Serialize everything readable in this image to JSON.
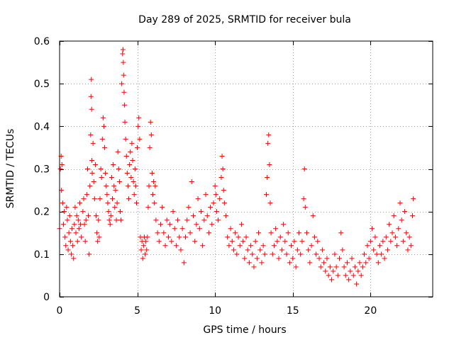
{
  "chart_data": {
    "type": "scatter",
    "title": "Day 289 of 2025, SRMTID for receiver bula",
    "xlabel": "GPS time / hours",
    "ylabel": "SRMTID / TECUs",
    "xlim": [
      0,
      24
    ],
    "ylim": [
      0,
      0.6
    ],
    "xticks": [
      0,
      5,
      10,
      15,
      20
    ],
    "xtick_labels": [
      "0",
      "5",
      "10",
      "15",
      "20"
    ],
    "yticks": [
      0,
      0.1,
      0.2,
      0.3,
      0.4,
      0.5,
      0.6
    ],
    "ytick_labels": [
      "0",
      "0.1",
      "0.2",
      "0.3",
      "0.4",
      "0.5",
      "0.6"
    ],
    "grid": true,
    "marker": "+",
    "point_color": "#ff0000",
    "series": [
      {
        "name": "SRMTID",
        "points": [
          [
            0.0,
            0.16
          ],
          [
            0.05,
            0.3
          ],
          [
            0.1,
            0.33
          ],
          [
            0.12,
            0.25
          ],
          [
            0.15,
            0.31
          ],
          [
            0.2,
            0.22
          ],
          [
            0.25,
            0.17
          ],
          [
            0.3,
            0.2
          ],
          [
            0.35,
            0.14
          ],
          [
            0.4,
            0.12
          ],
          [
            0.45,
            0.21
          ],
          [
            0.5,
            0.18
          ],
          [
            0.55,
            0.11
          ],
          [
            0.6,
            0.15
          ],
          [
            0.65,
            0.19
          ],
          [
            0.7,
            0.13
          ],
          [
            0.75,
            0.1
          ],
          [
            0.8,
            0.16
          ],
          [
            0.85,
            0.12
          ],
          [
            0.9,
            0.09
          ],
          [
            0.95,
            0.17
          ],
          [
            1.0,
            0.21
          ],
          [
            1.05,
            0.15
          ],
          [
            1.1,
            0.19
          ],
          [
            1.15,
            0.13
          ],
          [
            1.2,
            0.18
          ],
          [
            1.25,
            0.16
          ],
          [
            1.3,
            0.22
          ],
          [
            1.35,
            0.17
          ],
          [
            1.4,
            0.14
          ],
          [
            1.5,
            0.2
          ],
          [
            1.55,
            0.23
          ],
          [
            1.6,
            0.17
          ],
          [
            1.65,
            0.13
          ],
          [
            1.7,
            0.18
          ],
          [
            1.75,
            0.24
          ],
          [
            1.8,
            0.3
          ],
          [
            1.85,
            0.19
          ],
          [
            1.9,
            0.1
          ],
          [
            1.95,
            0.26
          ],
          [
            2.0,
            0.38
          ],
          [
            2.02,
            0.47
          ],
          [
            2.04,
            0.51
          ],
          [
            2.06,
            0.44
          ],
          [
            2.08,
            0.32
          ],
          [
            2.1,
            0.29
          ],
          [
            2.15,
            0.36
          ],
          [
            2.2,
            0.27
          ],
          [
            2.25,
            0.23
          ],
          [
            2.3,
            0.31
          ],
          [
            2.35,
            0.19
          ],
          [
            2.4,
            0.15
          ],
          [
            2.45,
            0.13
          ],
          [
            2.5,
            0.18
          ],
          [
            2.55,
            0.14
          ],
          [
            2.6,
            0.23
          ],
          [
            2.65,
            0.3
          ],
          [
            2.7,
            0.28
          ],
          [
            2.75,
            0.37
          ],
          [
            2.8,
            0.42
          ],
          [
            2.85,
            0.4
          ],
          [
            2.9,
            0.35
          ],
          [
            2.95,
            0.29
          ],
          [
            3.0,
            0.26
          ],
          [
            3.05,
            0.24
          ],
          [
            3.1,
            0.22
          ],
          [
            3.15,
            0.2
          ],
          [
            3.2,
            0.18
          ],
          [
            3.25,
            0.17
          ],
          [
            3.3,
            0.19
          ],
          [
            3.35,
            0.28
          ],
          [
            3.4,
            0.23
          ],
          [
            3.45,
            0.31
          ],
          [
            3.5,
            0.26
          ],
          [
            3.55,
            0.21
          ],
          [
            3.6,
            0.25
          ],
          [
            3.65,
            0.18
          ],
          [
            3.7,
            0.22
          ],
          [
            3.75,
            0.34
          ],
          [
            3.8,
            0.3
          ],
          [
            3.85,
            0.27
          ],
          [
            3.9,
            0.2
          ],
          [
            3.95,
            0.18
          ],
          [
            4.0,
            0.5
          ],
          [
            4.05,
            0.57
          ],
          [
            4.08,
            0.58
          ],
          [
            4.1,
            0.55
          ],
          [
            4.12,
            0.52
          ],
          [
            4.15,
            0.48
          ],
          [
            4.18,
            0.45
          ],
          [
            4.2,
            0.41
          ],
          [
            4.25,
            0.37
          ],
          [
            4.3,
            0.33
          ],
          [
            4.35,
            0.29
          ],
          [
            4.4,
            0.26
          ],
          [
            4.45,
            0.23
          ],
          [
            4.5,
            0.31
          ],
          [
            4.55,
            0.34
          ],
          [
            4.6,
            0.28
          ],
          [
            4.65,
            0.36
          ],
          [
            4.7,
            0.32
          ],
          [
            4.75,
            0.27
          ],
          [
            4.8,
            0.24
          ],
          [
            4.85,
            0.3
          ],
          [
            4.9,
            0.26
          ],
          [
            4.95,
            0.22
          ],
          [
            5.0,
            0.35
          ],
          [
            5.05,
            0.4
          ],
          [
            5.1,
            0.42
          ],
          [
            5.15,
            0.37
          ],
          [
            5.2,
            0.14
          ],
          [
            5.25,
            0.11
          ],
          [
            5.3,
            0.13
          ],
          [
            5.35,
            0.09
          ],
          [
            5.4,
            0.12
          ],
          [
            5.45,
            0.14
          ],
          [
            5.5,
            0.1
          ],
          [
            5.55,
            0.13
          ],
          [
            5.6,
            0.11
          ],
          [
            5.65,
            0.14
          ],
          [
            5.7,
            0.21
          ],
          [
            5.75,
            0.26
          ],
          [
            5.8,
            0.35
          ],
          [
            5.85,
            0.41
          ],
          [
            5.9,
            0.38
          ],
          [
            5.95,
            0.29
          ],
          [
            6.0,
            0.24
          ],
          [
            6.05,
            0.27
          ],
          [
            6.1,
            0.22
          ],
          [
            6.15,
            0.26
          ],
          [
            6.2,
            0.18
          ],
          [
            6.3,
            0.15
          ],
          [
            6.4,
            0.13
          ],
          [
            6.5,
            0.17
          ],
          [
            6.6,
            0.21
          ],
          [
            6.7,
            0.15
          ],
          [
            6.8,
            0.12
          ],
          [
            6.9,
            0.18
          ],
          [
            7.0,
            0.14
          ],
          [
            7.1,
            0.17
          ],
          [
            7.2,
            0.13
          ],
          [
            7.3,
            0.2
          ],
          [
            7.4,
            0.16
          ],
          [
            7.5,
            0.12
          ],
          [
            7.6,
            0.18
          ],
          [
            7.7,
            0.14
          ],
          [
            7.8,
            0.11
          ],
          [
            7.9,
            0.16
          ],
          [
            8.0,
            0.08
          ],
          [
            8.1,
            0.14
          ],
          [
            8.2,
            0.18
          ],
          [
            8.3,
            0.21
          ],
          [
            8.4,
            0.15
          ],
          [
            8.5,
            0.27
          ],
          [
            8.6,
            0.19
          ],
          [
            8.7,
            0.13
          ],
          [
            8.8,
            0.17
          ],
          [
            8.9,
            0.23
          ],
          [
            9.0,
            0.16
          ],
          [
            9.1,
            0.2
          ],
          [
            9.2,
            0.12
          ],
          [
            9.3,
            0.18
          ],
          [
            9.4,
            0.24
          ],
          [
            9.5,
            0.19
          ],
          [
            9.6,
            0.15
          ],
          [
            9.7,
            0.21
          ],
          [
            9.8,
            0.17
          ],
          [
            9.9,
            0.22
          ],
          [
            10.0,
            0.26
          ],
          [
            10.05,
            0.24
          ],
          [
            10.1,
            0.2
          ],
          [
            10.2,
            0.18
          ],
          [
            10.3,
            0.23
          ],
          [
            10.4,
            0.28
          ],
          [
            10.45,
            0.33
          ],
          [
            10.5,
            0.3
          ],
          [
            10.55,
            0.25
          ],
          [
            10.6,
            0.22
          ],
          [
            10.7,
            0.19
          ],
          [
            10.8,
            0.14
          ],
          [
            10.9,
            0.12
          ],
          [
            11.0,
            0.16
          ],
          [
            11.1,
            0.13
          ],
          [
            11.2,
            0.11
          ],
          [
            11.3,
            0.15
          ],
          [
            11.4,
            0.1
          ],
          [
            11.5,
            0.14
          ],
          [
            11.6,
            0.12
          ],
          [
            11.7,
            0.17
          ],
          [
            11.8,
            0.13
          ],
          [
            11.9,
            0.09
          ],
          [
            12.0,
            0.14
          ],
          [
            12.1,
            0.11
          ],
          [
            12.2,
            0.08
          ],
          [
            12.3,
            0.12
          ],
          [
            12.4,
            0.1
          ],
          [
            12.5,
            0.07
          ],
          [
            12.6,
            0.13
          ],
          [
            12.7,
            0.09
          ],
          [
            12.8,
            0.15
          ],
          [
            12.9,
            0.11
          ],
          [
            13.0,
            0.08
          ],
          [
            13.1,
            0.12
          ],
          [
            13.2,
            0.1
          ],
          [
            13.3,
            0.24
          ],
          [
            13.35,
            0.28
          ],
          [
            13.4,
            0.36
          ],
          [
            13.45,
            0.38
          ],
          [
            13.5,
            0.31
          ],
          [
            13.55,
            0.22
          ],
          [
            13.6,
            0.15
          ],
          [
            13.7,
            0.1
          ],
          [
            13.8,
            0.12
          ],
          [
            13.9,
            0.16
          ],
          [
            14.0,
            0.13
          ],
          [
            14.1,
            0.09
          ],
          [
            14.2,
            0.14
          ],
          [
            14.3,
            0.11
          ],
          [
            14.4,
            0.17
          ],
          [
            14.5,
            0.13
          ],
          [
            14.6,
            0.1
          ],
          [
            14.7,
            0.15
          ],
          [
            14.8,
            0.08
          ],
          [
            14.9,
            0.12
          ],
          [
            15.0,
            0.09
          ],
          [
            15.1,
            0.13
          ],
          [
            15.2,
            0.07
          ],
          [
            15.3,
            0.11
          ],
          [
            15.4,
            0.15
          ],
          [
            15.5,
            0.1
          ],
          [
            15.6,
            0.13
          ],
          [
            15.7,
            0.23
          ],
          [
            15.75,
            0.3
          ],
          [
            15.8,
            0.21
          ],
          [
            15.9,
            0.15
          ],
          [
            16.0,
            0.11
          ],
          [
            16.1,
            0.08
          ],
          [
            16.2,
            0.12
          ],
          [
            16.3,
            0.19
          ],
          [
            16.4,
            0.14
          ],
          [
            16.5,
            0.1
          ],
          [
            16.6,
            0.13
          ],
          [
            16.7,
            0.09
          ],
          [
            16.8,
            0.07
          ],
          [
            16.9,
            0.11
          ],
          [
            17.0,
            0.08
          ],
          [
            17.1,
            0.06
          ],
          [
            17.2,
            0.09
          ],
          [
            17.3,
            0.05
          ],
          [
            17.4,
            0.07
          ],
          [
            17.5,
            0.04
          ],
          [
            17.6,
            0.06
          ],
          [
            17.7,
            0.1
          ],
          [
            17.8,
            0.07
          ],
          [
            17.9,
            0.05
          ],
          [
            18.0,
            0.09
          ],
          [
            18.1,
            0.15
          ],
          [
            18.2,
            0.11
          ],
          [
            18.3,
            0.07
          ],
          [
            18.4,
            0.05
          ],
          [
            18.5,
            0.08
          ],
          [
            18.6,
            0.04
          ],
          [
            18.7,
            0.06
          ],
          [
            18.8,
            0.09
          ],
          [
            18.9,
            0.05
          ],
          [
            19.0,
            0.07
          ],
          [
            19.1,
            0.03
          ],
          [
            19.2,
            0.06
          ],
          [
            19.3,
            0.08
          ],
          [
            19.4,
            0.05
          ],
          [
            19.5,
            0.07
          ],
          [
            19.6,
            0.1
          ],
          [
            19.7,
            0.08
          ],
          [
            19.8,
            0.12
          ],
          [
            19.9,
            0.09
          ],
          [
            20.0,
            0.13
          ],
          [
            20.1,
            0.16
          ],
          [
            20.2,
            0.11
          ],
          [
            20.3,
            0.14
          ],
          [
            20.4,
            0.1
          ],
          [
            20.5,
            0.08
          ],
          [
            20.6,
            0.12
          ],
          [
            20.7,
            0.1
          ],
          [
            20.8,
            0.13
          ],
          [
            20.9,
            0.09
          ],
          [
            21.0,
            0.14
          ],
          [
            21.1,
            0.11
          ],
          [
            21.2,
            0.17
          ],
          [
            21.3,
            0.13
          ],
          [
            21.4,
            0.15
          ],
          [
            21.5,
            0.19
          ],
          [
            21.6,
            0.14
          ],
          [
            21.7,
            0.12
          ],
          [
            21.8,
            0.16
          ],
          [
            21.9,
            0.22
          ],
          [
            22.0,
            0.18
          ],
          [
            22.1,
            0.13
          ],
          [
            22.2,
            0.2
          ],
          [
            22.3,
            0.15
          ],
          [
            22.4,
            0.11
          ],
          [
            22.5,
            0.14
          ],
          [
            22.6,
            0.12
          ],
          [
            22.7,
            0.19
          ],
          [
            22.75,
            0.23
          ]
        ]
      }
    ]
  }
}
